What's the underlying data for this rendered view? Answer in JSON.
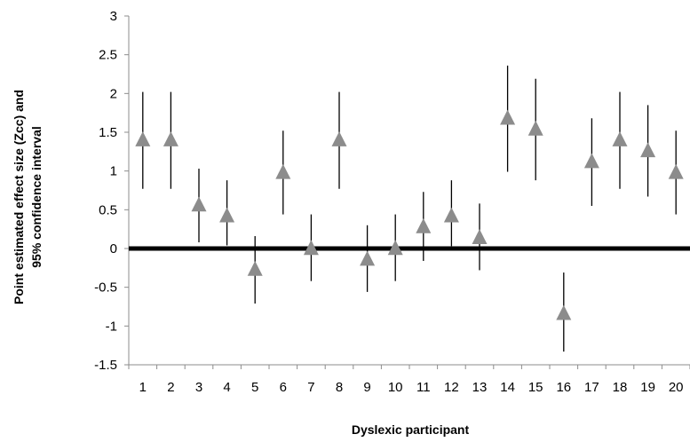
{
  "chart_data": {
    "type": "scatter",
    "xlabel": "Dyslexic participant",
    "ylabel_lines": [
      "Point estimated  effect size (Zcc) and",
      "95% confidence  interval"
    ],
    "ylim": [
      -1.5,
      3
    ],
    "yticks": [
      "3",
      "2.5",
      "2",
      "1.5",
      "1",
      "0.5",
      "0",
      "-0.5",
      "-1",
      "-1.5"
    ],
    "ytick_values": [
      3,
      2.5,
      2,
      1.5,
      1,
      0.5,
      0,
      -0.5,
      -1,
      -1.5
    ],
    "categories": [
      "1",
      "2",
      "3",
      "4",
      "5",
      "6",
      "7",
      "8",
      "9",
      "10",
      "11",
      "12",
      "13",
      "14",
      "15",
      "16",
      "17",
      "18",
      "19",
      "20"
    ],
    "series": [
      {
        "values": [
          1.4,
          1.4,
          0.56,
          0.42,
          -0.27,
          0.98,
          0.0,
          1.4,
          -0.14,
          0.0,
          0.28,
          0.42,
          0.14,
          1.68,
          1.54,
          -0.84,
          1.12,
          1.4,
          1.26,
          0.98
        ],
        "ci_low": [
          0.77,
          0.77,
          0.08,
          0.04,
          -0.71,
          0.44,
          -0.42,
          0.77,
          -0.56,
          -0.42,
          -0.16,
          0.03,
          -0.28,
          0.99,
          0.88,
          -1.33,
          0.55,
          0.77,
          0.67,
          0.44
        ],
        "ci_high": [
          2.02,
          2.02,
          1.03,
          0.88,
          0.16,
          1.52,
          0.44,
          2.02,
          0.3,
          0.44,
          0.73,
          0.88,
          0.58,
          2.36,
          2.19,
          -0.31,
          1.68,
          2.02,
          1.85,
          1.52
        ]
      }
    ],
    "reference_line": 0,
    "grid": false,
    "colors": {
      "marker": "#8c8c8c",
      "error_bar": "#000000",
      "axis": "#8c8c8c",
      "zero_line": "#000000"
    }
  }
}
